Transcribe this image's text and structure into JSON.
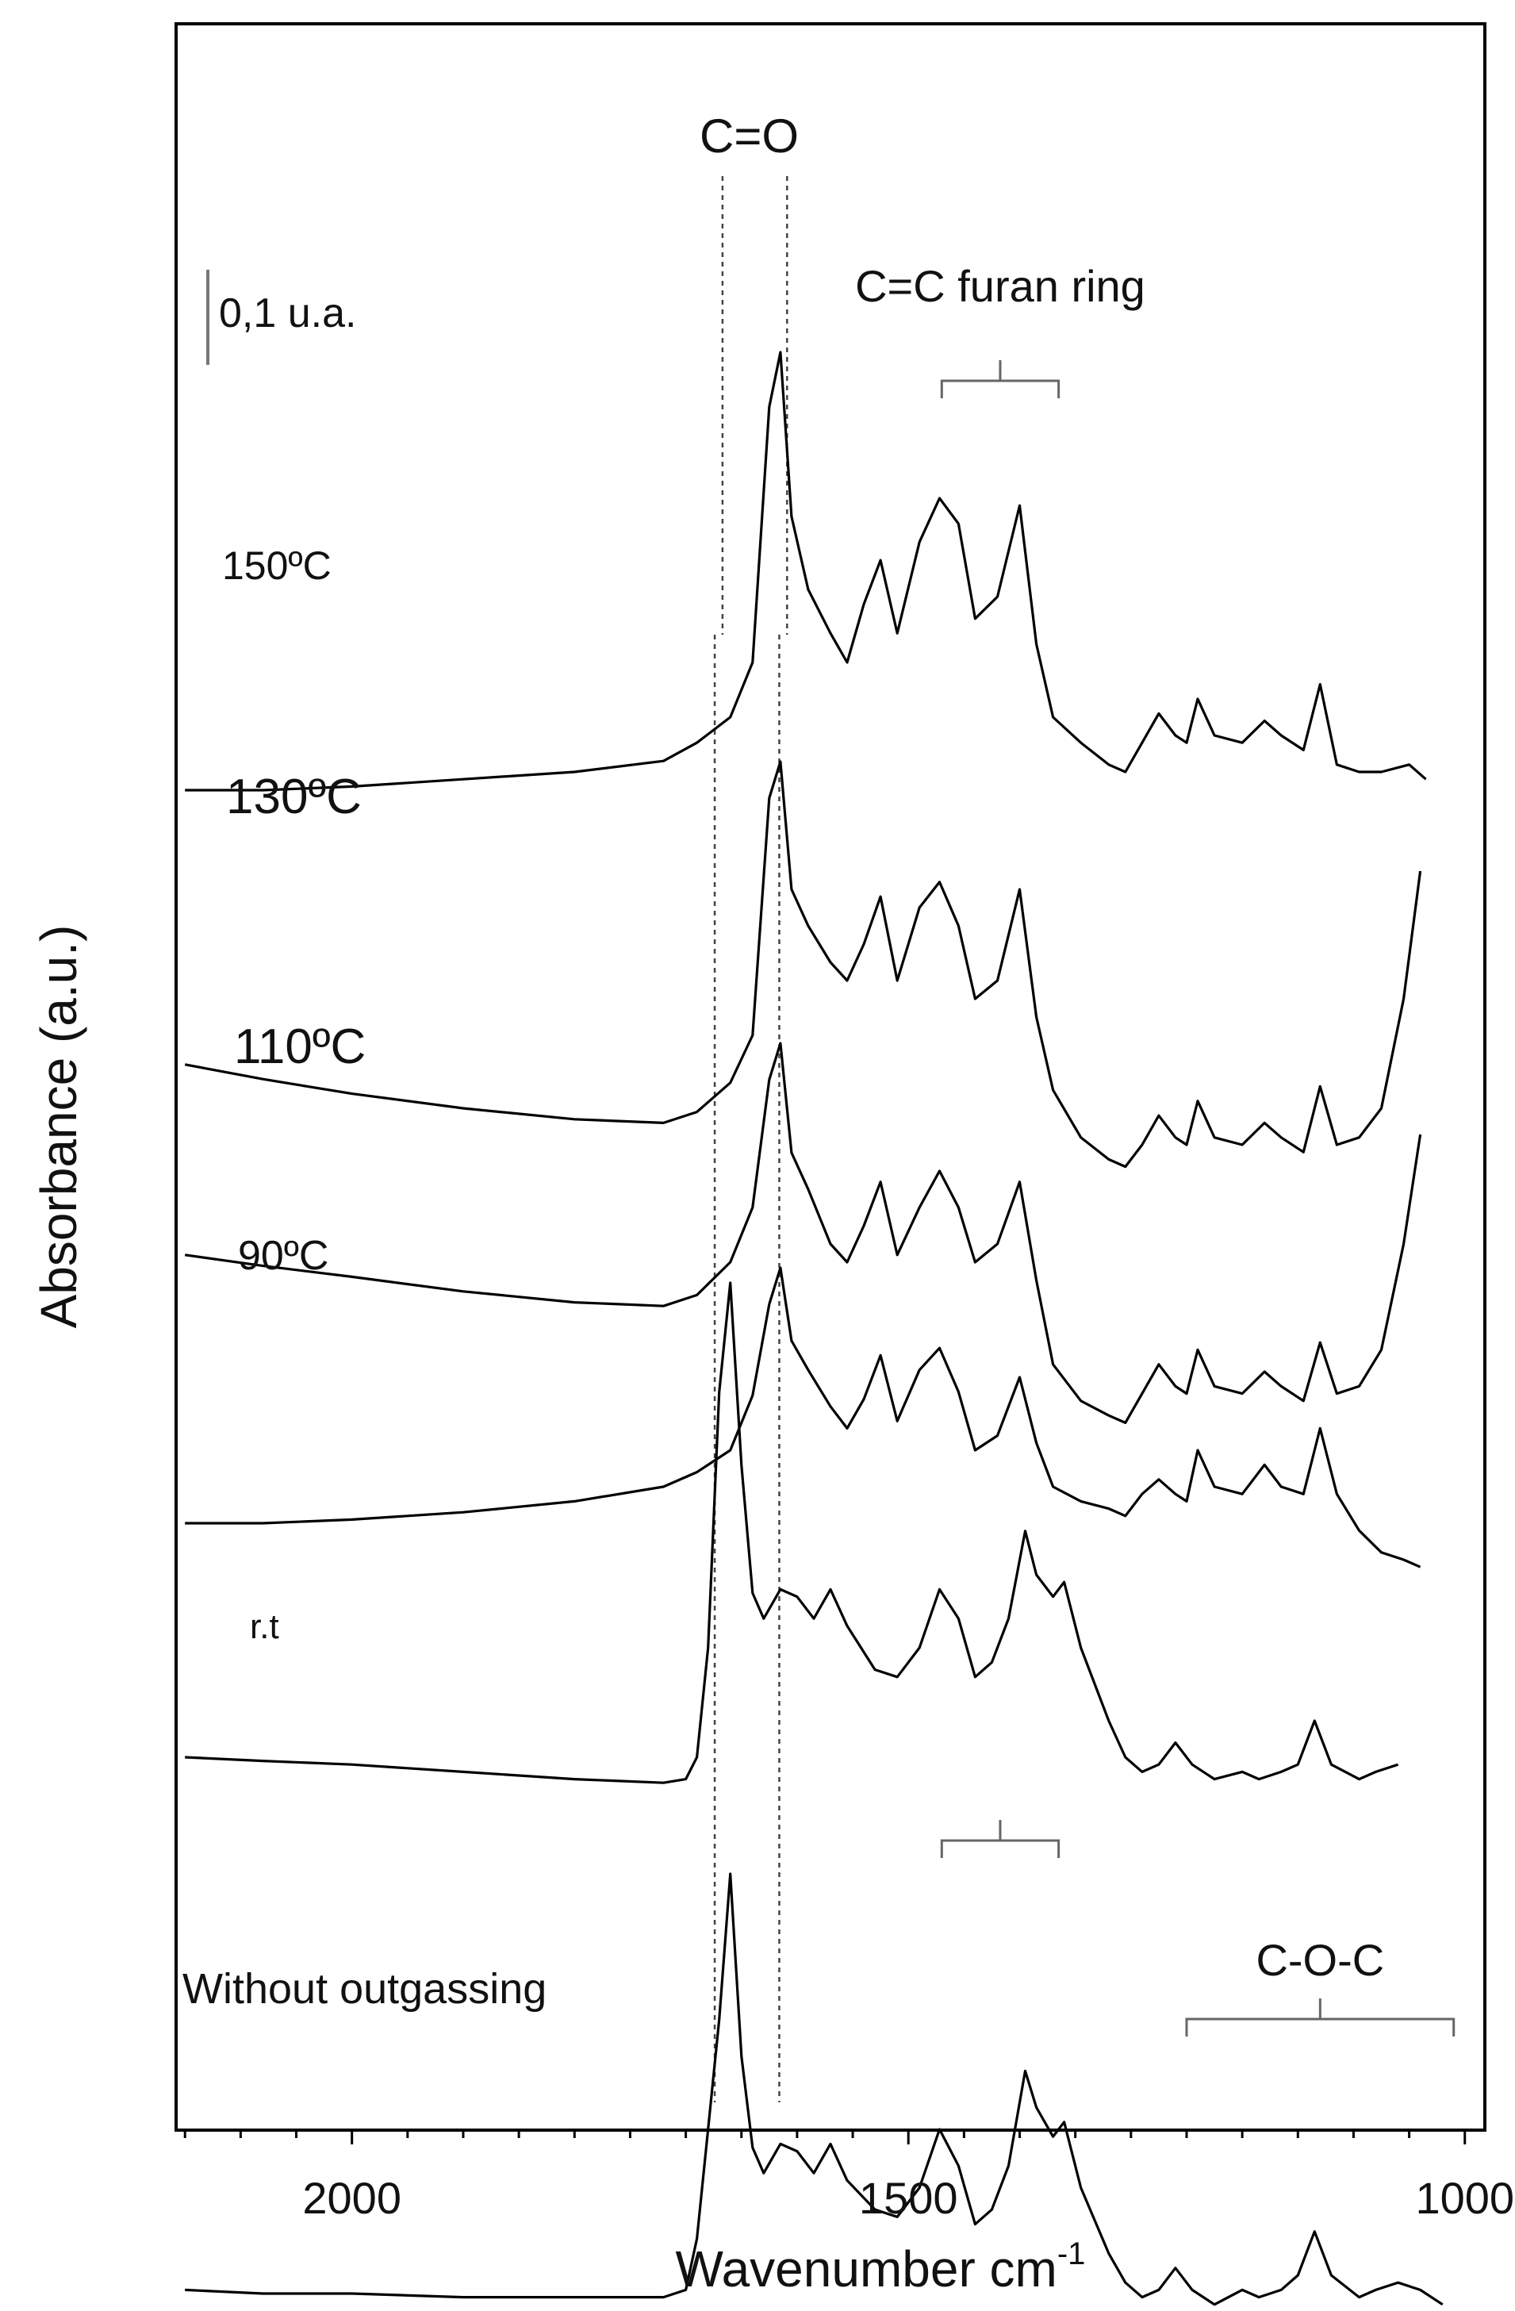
{
  "chart_data": {
    "type": "line",
    "title": "",
    "xlabel": "Wavenumber cm",
    "xlabel_superscript": "-1",
    "ylabel": "Absorbance (a.u.)",
    "x_reversed": true,
    "xlim": [
      2158,
      982
    ],
    "x_ticks": [
      2000,
      1500,
      1000
    ],
    "x_tick_labels": [
      "2000",
      "1500",
      "1000"
    ],
    "scale_bar_label": "0,1 u.a.",
    "grid": false,
    "legend": "none",
    "reference_lines_x": [
      1667,
      1609,
      1674,
      1616
    ],
    "reference_label": "C=O",
    "band_labels": [
      {
        "text": "C=C furan ring",
        "x_from": 1470,
        "x_to": 1365
      },
      {
        "text": "",
        "x_from": 1470,
        "x_to": 1365
      },
      {
        "text": "C-O-C",
        "x_from": 1250,
        "x_to": 1010
      }
    ],
    "series": [
      {
        "name": "150ºC",
        "points": [
          [
            2150,
            0.15
          ],
          [
            2080,
            0.15
          ],
          [
            2000,
            0.16
          ],
          [
            1900,
            0.18
          ],
          [
            1800,
            0.2
          ],
          [
            1720,
            0.23
          ],
          [
            1690,
            0.28
          ],
          [
            1660,
            0.35
          ],
          [
            1640,
            0.5
          ],
          [
            1625,
            1.2
          ],
          [
            1615,
            1.35
          ],
          [
            1605,
            0.9
          ],
          [
            1590,
            0.7
          ],
          [
            1570,
            0.58
          ],
          [
            1555,
            0.5
          ],
          [
            1540,
            0.66
          ],
          [
            1525,
            0.78
          ],
          [
            1510,
            0.58
          ],
          [
            1490,
            0.83
          ],
          [
            1472,
            0.95
          ],
          [
            1455,
            0.88
          ],
          [
            1440,
            0.62
          ],
          [
            1420,
            0.68
          ],
          [
            1400,
            0.93
          ],
          [
            1385,
            0.55
          ],
          [
            1370,
            0.35
          ],
          [
            1345,
            0.28
          ],
          [
            1320,
            0.22
          ],
          [
            1305,
            0.2
          ],
          [
            1290,
            0.28
          ],
          [
            1275,
            0.36
          ],
          [
            1260,
            0.3
          ],
          [
            1250,
            0.28
          ],
          [
            1240,
            0.4
          ],
          [
            1225,
            0.3
          ],
          [
            1200,
            0.28
          ],
          [
            1180,
            0.34
          ],
          [
            1165,
            0.3
          ],
          [
            1145,
            0.26
          ],
          [
            1130,
            0.44
          ],
          [
            1115,
            0.22
          ],
          [
            1095,
            0.2
          ],
          [
            1075,
            0.2
          ],
          [
            1050,
            0.22
          ],
          [
            1035,
            0.18
          ]
        ]
      },
      {
        "name": "130ºC",
        "points": [
          [
            2150,
            0.92
          ],
          [
            2080,
            0.88
          ],
          [
            2000,
            0.84
          ],
          [
            1900,
            0.8
          ],
          [
            1800,
            0.77
          ],
          [
            1720,
            0.76
          ],
          [
            1690,
            0.79
          ],
          [
            1660,
            0.87
          ],
          [
            1640,
            1.0
          ],
          [
            1625,
            1.65
          ],
          [
            1615,
            1.75
          ],
          [
            1605,
            1.4
          ],
          [
            1590,
            1.3
          ],
          [
            1570,
            1.2
          ],
          [
            1555,
            1.15
          ],
          [
            1540,
            1.25
          ],
          [
            1525,
            1.38
          ],
          [
            1510,
            1.15
          ],
          [
            1490,
            1.35
          ],
          [
            1472,
            1.42
          ],
          [
            1455,
            1.3
          ],
          [
            1440,
            1.1
          ],
          [
            1420,
            1.15
          ],
          [
            1400,
            1.4
          ],
          [
            1385,
            1.05
          ],
          [
            1370,
            0.85
          ],
          [
            1345,
            0.72
          ],
          [
            1320,
            0.66
          ],
          [
            1305,
            0.64
          ],
          [
            1290,
            0.7
          ],
          [
            1275,
            0.78
          ],
          [
            1260,
            0.72
          ],
          [
            1250,
            0.7
          ],
          [
            1240,
            0.82
          ],
          [
            1225,
            0.72
          ],
          [
            1200,
            0.7
          ],
          [
            1180,
            0.76
          ],
          [
            1165,
            0.72
          ],
          [
            1145,
            0.68
          ],
          [
            1130,
            0.86
          ],
          [
            1115,
            0.7
          ],
          [
            1095,
            0.72
          ],
          [
            1075,
            0.8
          ],
          [
            1055,
            1.1
          ],
          [
            1040,
            1.45
          ]
        ]
      },
      {
        "name": "110ºC",
        "points": [
          [
            2150,
            0.92
          ],
          [
            2080,
            0.89
          ],
          [
            2000,
            0.86
          ],
          [
            1900,
            0.82
          ],
          [
            1800,
            0.79
          ],
          [
            1720,
            0.78
          ],
          [
            1690,
            0.81
          ],
          [
            1660,
            0.9
          ],
          [
            1640,
            1.05
          ],
          [
            1625,
            1.4
          ],
          [
            1615,
            1.5
          ],
          [
            1605,
            1.2
          ],
          [
            1590,
            1.1
          ],
          [
            1570,
            0.95
          ],
          [
            1555,
            0.9
          ],
          [
            1540,
            1.0
          ],
          [
            1525,
            1.12
          ],
          [
            1510,
            0.92
          ],
          [
            1490,
            1.05
          ],
          [
            1472,
            1.15
          ],
          [
            1455,
            1.05
          ],
          [
            1440,
            0.9
          ],
          [
            1420,
            0.95
          ],
          [
            1400,
            1.12
          ],
          [
            1385,
            0.85
          ],
          [
            1370,
            0.62
          ],
          [
            1345,
            0.52
          ],
          [
            1320,
            0.48
          ],
          [
            1305,
            0.46
          ],
          [
            1290,
            0.54
          ],
          [
            1275,
            0.62
          ],
          [
            1260,
            0.56
          ],
          [
            1250,
            0.54
          ],
          [
            1240,
            0.66
          ],
          [
            1225,
            0.56
          ],
          [
            1200,
            0.54
          ],
          [
            1180,
            0.6
          ],
          [
            1165,
            0.56
          ],
          [
            1145,
            0.52
          ],
          [
            1130,
            0.68
          ],
          [
            1115,
            0.54
          ],
          [
            1095,
            0.56
          ],
          [
            1075,
            0.66
          ],
          [
            1055,
            0.95
          ],
          [
            1040,
            1.25
          ]
        ]
      },
      {
        "name": "90ºC",
        "points": [
          [
            2150,
            0.5
          ],
          [
            2080,
            0.5
          ],
          [
            2000,
            0.51
          ],
          [
            1900,
            0.53
          ],
          [
            1800,
            0.56
          ],
          [
            1720,
            0.6
          ],
          [
            1690,
            0.64
          ],
          [
            1660,
            0.7
          ],
          [
            1640,
            0.85
          ],
          [
            1625,
            1.1
          ],
          [
            1615,
            1.2
          ],
          [
            1605,
            1.0
          ],
          [
            1590,
            0.92
          ],
          [
            1570,
            0.82
          ],
          [
            1555,
            0.76
          ],
          [
            1540,
            0.84
          ],
          [
            1525,
            0.96
          ],
          [
            1510,
            0.78
          ],
          [
            1490,
            0.92
          ],
          [
            1472,
            0.98
          ],
          [
            1455,
            0.86
          ],
          [
            1440,
            0.7
          ],
          [
            1420,
            0.74
          ],
          [
            1400,
            0.9
          ],
          [
            1385,
            0.72
          ],
          [
            1370,
            0.6
          ],
          [
            1345,
            0.56
          ],
          [
            1320,
            0.54
          ],
          [
            1305,
            0.52
          ],
          [
            1290,
            0.58
          ],
          [
            1275,
            0.62
          ],
          [
            1260,
            0.58
          ],
          [
            1250,
            0.56
          ],
          [
            1240,
            0.7
          ],
          [
            1225,
            0.6
          ],
          [
            1200,
            0.58
          ],
          [
            1180,
            0.66
          ],
          [
            1165,
            0.6
          ],
          [
            1145,
            0.58
          ],
          [
            1130,
            0.76
          ],
          [
            1115,
            0.58
          ],
          [
            1095,
            0.48
          ],
          [
            1075,
            0.42
          ],
          [
            1055,
            0.4
          ],
          [
            1040,
            0.38
          ]
        ]
      },
      {
        "name": "r.t",
        "points": [
          [
            2150,
            0.0
          ],
          [
            2080,
            -0.01
          ],
          [
            2000,
            -0.02
          ],
          [
            1900,
            -0.04
          ],
          [
            1800,
            -0.06
          ],
          [
            1720,
            -0.07
          ],
          [
            1700,
            -0.06
          ],
          [
            1690,
            0.0
          ],
          [
            1680,
            0.3
          ],
          [
            1670,
            1.0
          ],
          [
            1660,
            1.3
          ],
          [
            1650,
            0.8
          ],
          [
            1640,
            0.45
          ],
          [
            1630,
            0.38
          ],
          [
            1615,
            0.46
          ],
          [
            1600,
            0.44
          ],
          [
            1585,
            0.38
          ],
          [
            1570,
            0.46
          ],
          [
            1555,
            0.36
          ],
          [
            1530,
            0.24
          ],
          [
            1510,
            0.22
          ],
          [
            1490,
            0.3
          ],
          [
            1472,
            0.46
          ],
          [
            1455,
            0.38
          ],
          [
            1440,
            0.22
          ],
          [
            1425,
            0.26
          ],
          [
            1410,
            0.38
          ],
          [
            1395,
            0.62
          ],
          [
            1385,
            0.5
          ],
          [
            1370,
            0.44
          ],
          [
            1360,
            0.48
          ],
          [
            1345,
            0.3
          ],
          [
            1320,
            0.1
          ],
          [
            1305,
            0.0
          ],
          [
            1290,
            -0.04
          ],
          [
            1275,
            -0.02
          ],
          [
            1260,
            0.04
          ],
          [
            1245,
            -0.02
          ],
          [
            1225,
            -0.06
          ],
          [
            1200,
            -0.04
          ],
          [
            1185,
            -0.06
          ],
          [
            1165,
            -0.04
          ],
          [
            1150,
            -0.02
          ],
          [
            1135,
            0.1
          ],
          [
            1120,
            -0.02
          ],
          [
            1095,
            -0.06
          ],
          [
            1080,
            -0.04
          ],
          [
            1060,
            -0.02
          ]
        ]
      },
      {
        "name": "Without outgassing",
        "points": [
          [
            2150,
            -0.84
          ],
          [
            2080,
            -0.85
          ],
          [
            2000,
            -0.85
          ],
          [
            1900,
            -0.86
          ],
          [
            1800,
            -0.86
          ],
          [
            1720,
            -0.86
          ],
          [
            1700,
            -0.84
          ],
          [
            1690,
            -0.7
          ],
          [
            1680,
            -0.4
          ],
          [
            1670,
            -0.1
          ],
          [
            1660,
            0.3
          ],
          [
            1650,
            -0.2
          ],
          [
            1640,
            -0.45
          ],
          [
            1630,
            -0.52
          ],
          [
            1615,
            -0.44
          ],
          [
            1600,
            -0.46
          ],
          [
            1585,
            -0.52
          ],
          [
            1570,
            -0.44
          ],
          [
            1555,
            -0.54
          ],
          [
            1530,
            -0.62
          ],
          [
            1510,
            -0.64
          ],
          [
            1490,
            -0.56
          ],
          [
            1472,
            -0.4
          ],
          [
            1455,
            -0.5
          ],
          [
            1440,
            -0.66
          ],
          [
            1425,
            -0.62
          ],
          [
            1410,
            -0.5
          ],
          [
            1395,
            -0.24
          ],
          [
            1385,
            -0.34
          ],
          [
            1370,
            -0.42
          ],
          [
            1360,
            -0.38
          ],
          [
            1345,
            -0.56
          ],
          [
            1320,
            -0.74
          ],
          [
            1305,
            -0.82
          ],
          [
            1290,
            -0.86
          ],
          [
            1275,
            -0.84
          ],
          [
            1260,
            -0.78
          ],
          [
            1245,
            -0.84
          ],
          [
            1225,
            -0.88
          ],
          [
            1200,
            -0.84
          ],
          [
            1185,
            -0.86
          ],
          [
            1165,
            -0.84
          ],
          [
            1150,
            -0.8
          ],
          [
            1135,
            -0.68
          ],
          [
            1120,
            -0.8
          ],
          [
            1095,
            -0.86
          ],
          [
            1080,
            -0.84
          ],
          [
            1060,
            -0.82
          ],
          [
            1040,
            -0.84
          ],
          [
            1020,
            -0.88
          ]
        ]
      }
    ]
  }
}
